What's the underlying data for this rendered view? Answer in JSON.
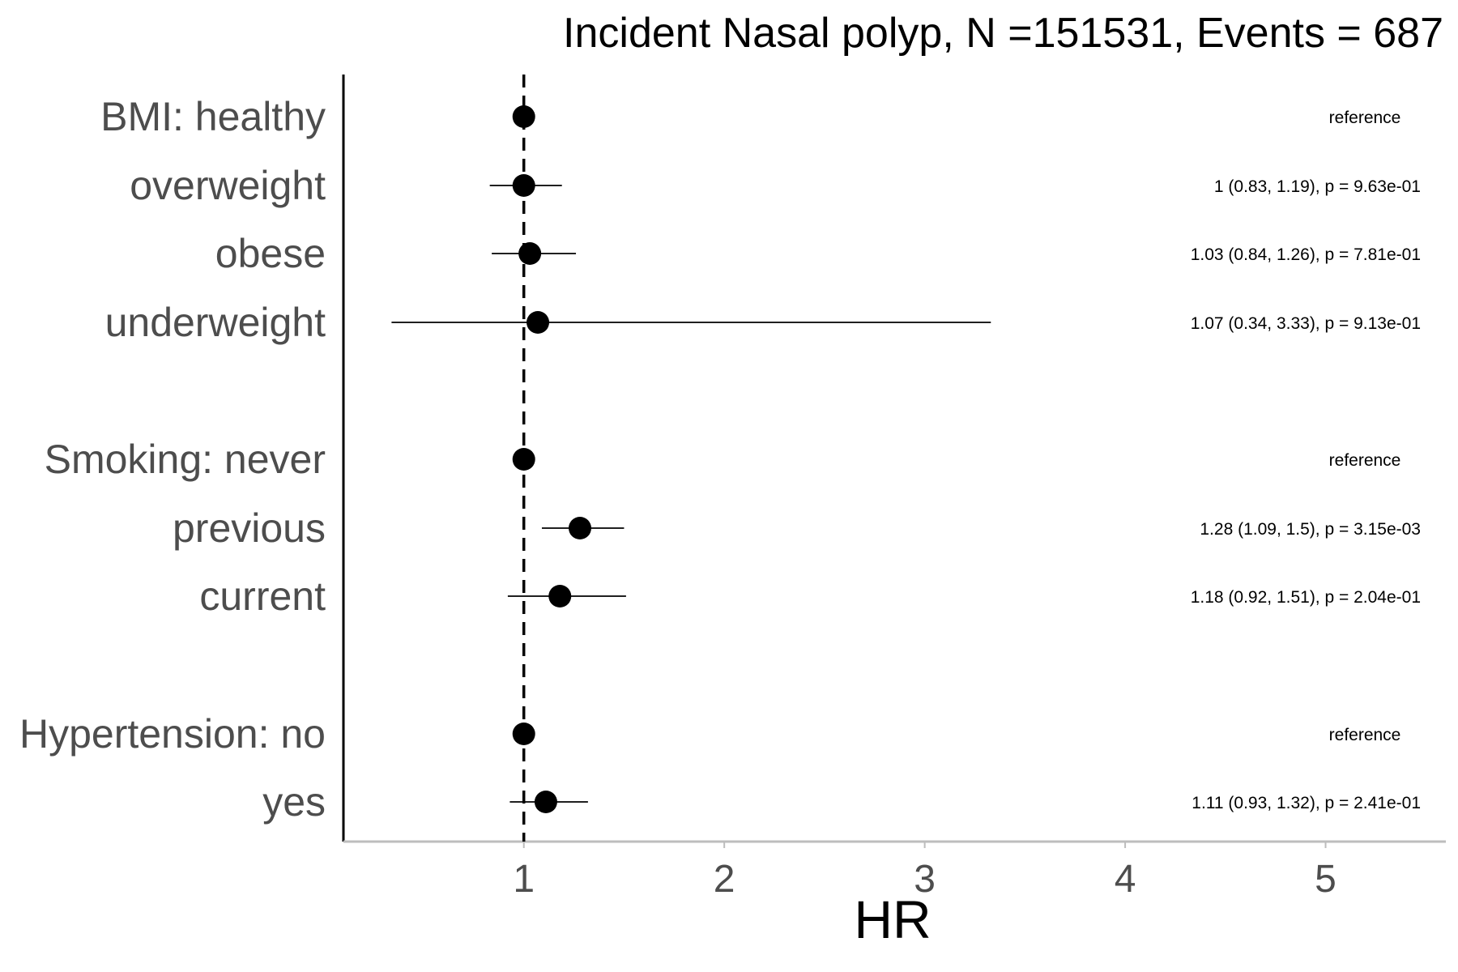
{
  "chart_data": {
    "type": "scatter",
    "subtype": "forest-plot",
    "title": "Incident Nasal polyp, N =151531, Events = 687",
    "xlabel": "HR",
    "ylabel": "",
    "xlim": [
      0.1,
      5.6
    ],
    "xticks": [
      1,
      2,
      3,
      4,
      5
    ],
    "reference_line": 1,
    "grid": false,
    "colors": {
      "point": "#000000",
      "ci_line": "#000000",
      "reference_line": "#000000",
      "y_axis": "#000000",
      "x_axis": "#bdbdbd",
      "label_text": "#4d4d4d"
    },
    "rows": [
      {
        "label": "BMI: healthy",
        "hr": 1.0,
        "lower": null,
        "upper": null,
        "annotation": "reference"
      },
      {
        "label": "overweight",
        "hr": 1.0,
        "lower": 0.83,
        "upper": 1.19,
        "annotation": "1 (0.83, 1.19), p = 9.63e-01"
      },
      {
        "label": "obese",
        "hr": 1.03,
        "lower": 0.84,
        "upper": 1.26,
        "annotation": "1.03 (0.84, 1.26), p = 7.81e-01"
      },
      {
        "label": "underweight",
        "hr": 1.07,
        "lower": 0.34,
        "upper": 3.33,
        "annotation": "1.07 (0.34, 3.33), p = 9.13e-01"
      },
      {
        "label": "Smoking: never",
        "hr": 1.0,
        "lower": null,
        "upper": null,
        "annotation": "reference"
      },
      {
        "label": "previous",
        "hr": 1.28,
        "lower": 1.09,
        "upper": 1.5,
        "annotation": "1.28 (1.09, 1.5), p = 3.15e-03"
      },
      {
        "label": "current",
        "hr": 1.18,
        "lower": 0.92,
        "upper": 1.51,
        "annotation": "1.18 (0.92, 1.51), p = 2.04e-01"
      },
      {
        "label": "Hypertension: no",
        "hr": 1.0,
        "lower": null,
        "upper": null,
        "annotation": "reference"
      },
      {
        "label": "yes",
        "hr": 1.11,
        "lower": 0.93,
        "upper": 1.32,
        "annotation": "1.11 (0.93, 1.32), p = 2.41e-01"
      }
    ]
  }
}
